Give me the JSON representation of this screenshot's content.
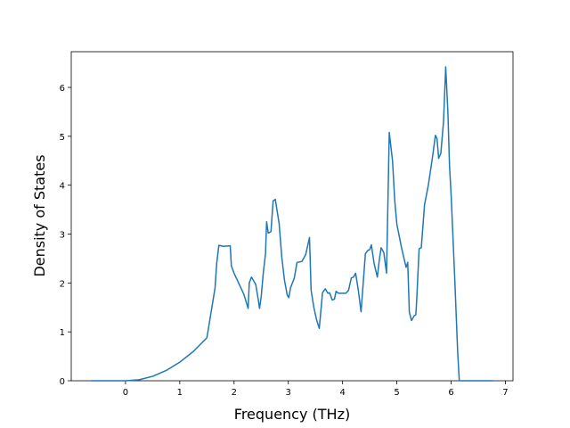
{
  "chart_data": {
    "type": "line",
    "xlabel": "Frequency (THz)",
    "ylabel": "Density of States",
    "x": [
      -0.63,
      0.0,
      0.25,
      0.5,
      0.75,
      1.0,
      1.25,
      1.5,
      1.65,
      1.68,
      1.72,
      1.8,
      1.93,
      1.95,
      2.0,
      2.05,
      2.18,
      2.26,
      2.28,
      2.32,
      2.4,
      2.44,
      2.47,
      2.5,
      2.54,
      2.58,
      2.6,
      2.63,
      2.68,
      2.72,
      2.76,
      2.83,
      2.88,
      2.93,
      2.98,
      3.01,
      3.04,
      3.11,
      3.16,
      3.25,
      3.32,
      3.35,
      3.39,
      3.42,
      3.47,
      3.52,
      3.57,
      3.63,
      3.68,
      3.73,
      3.76,
      3.81,
      3.85,
      3.88,
      3.92,
      4.06,
      4.11,
      4.16,
      4.2,
      4.24,
      4.29,
      4.34,
      4.38,
      4.42,
      4.47,
      4.5,
      4.53,
      4.58,
      4.64,
      4.68,
      4.71,
      4.76,
      4.81,
      4.86,
      4.92,
      4.96,
      5.0,
      5.09,
      5.17,
      5.2,
      5.23,
      5.27,
      5.32,
      5.35,
      5.37,
      5.41,
      5.45,
      5.51,
      5.58,
      5.66,
      5.71,
      5.74,
      5.77,
      5.81,
      5.86,
      5.9,
      5.94,
      5.97,
      6.0,
      6.07,
      6.12,
      6.15,
      6.77
    ],
    "series": [
      {
        "color": "#1f77b4",
        "values": [
          0,
          0,
          0.02,
          0.09,
          0.21,
          0.38,
          0.6,
          0.88,
          1.9,
          2.4,
          2.77,
          2.75,
          2.76,
          2.35,
          2.2,
          2.08,
          1.77,
          1.48,
          2.0,
          2.12,
          1.97,
          1.7,
          1.48,
          1.72,
          2.22,
          2.6,
          3.25,
          3.02,
          3.05,
          3.68,
          3.71,
          3.22,
          2.52,
          2.05,
          1.75,
          1.7,
          1.9,
          2.1,
          2.42,
          2.44,
          2.58,
          2.73,
          2.93,
          1.85,
          1.5,
          1.25,
          1.07,
          1.8,
          1.88,
          1.79,
          1.8,
          1.65,
          1.67,
          1.83,
          1.79,
          1.79,
          1.85,
          2.1,
          2.12,
          2.2,
          1.85,
          1.41,
          2.0,
          2.6,
          2.67,
          2.68,
          2.78,
          2.4,
          2.12,
          2.5,
          2.72,
          2.62,
          2.2,
          5.08,
          4.5,
          3.7,
          3.2,
          2.7,
          2.32,
          2.42,
          1.4,
          1.23,
          1.33,
          1.35,
          1.75,
          2.7,
          2.72,
          3.6,
          4.0,
          4.6,
          5.02,
          4.95,
          4.55,
          4.65,
          5.3,
          6.42,
          5.5,
          4.4,
          3.8,
          2.0,
          0.6,
          0,
          0
        ]
      }
    ],
    "xlim": [
      -1.0,
      7.14
    ],
    "ylim": [
      0,
      6.73
    ],
    "xticks": [
      0,
      1,
      2,
      3,
      4,
      5,
      6,
      7
    ],
    "yticks": [
      0,
      1,
      2,
      3,
      4,
      5,
      6
    ]
  }
}
